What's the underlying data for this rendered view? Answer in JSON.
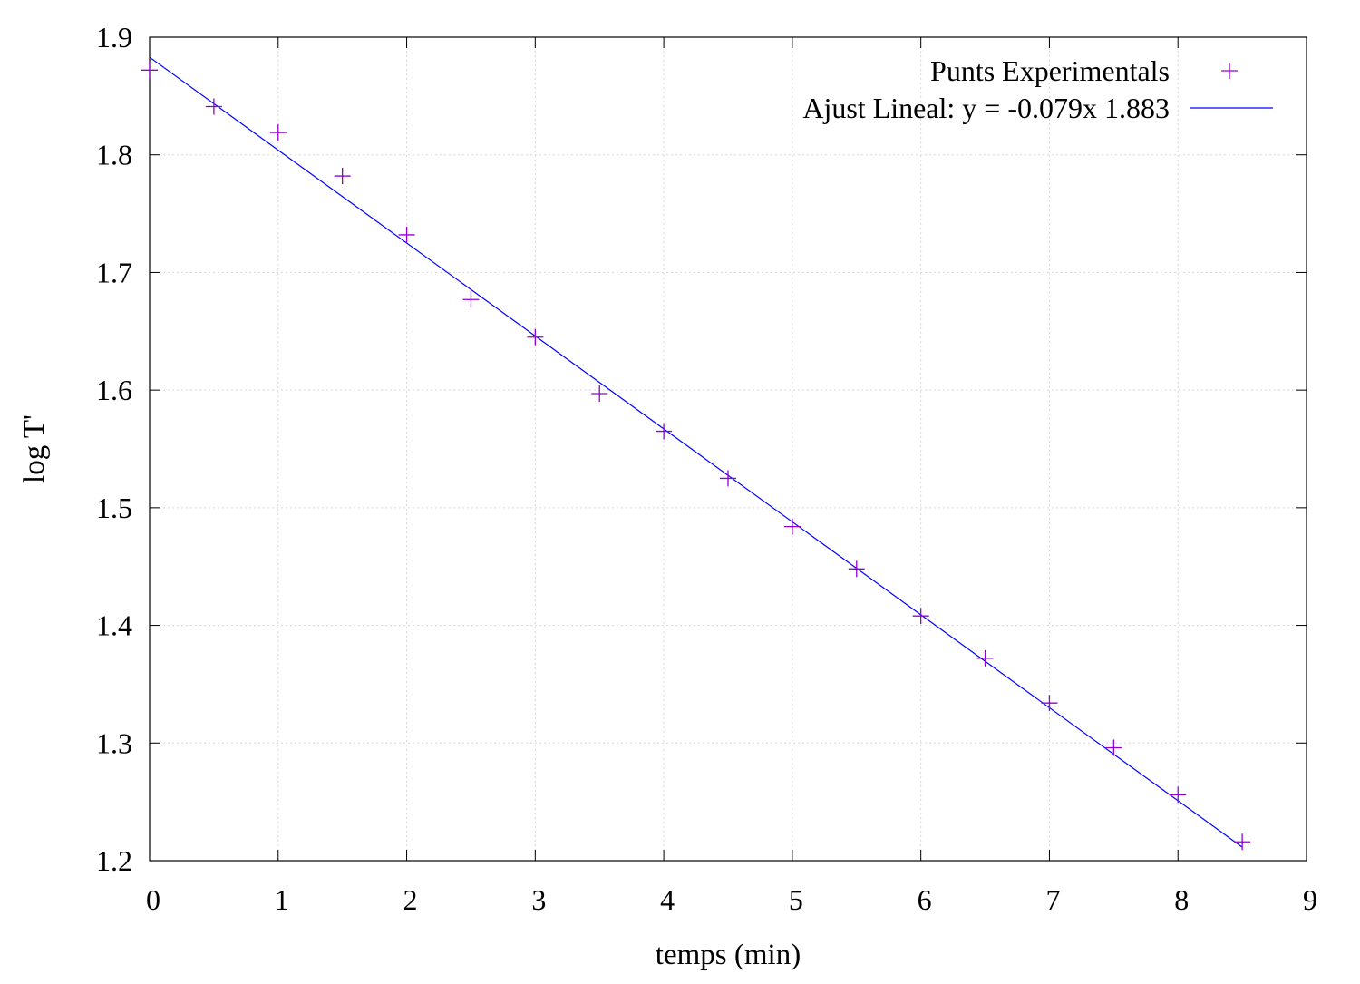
{
  "chart_data": {
    "type": "scatter",
    "title": "",
    "xlabel": "temps (min)",
    "ylabel": "log T'",
    "xlim": [
      0,
      9
    ],
    "ylim": [
      1.2,
      1.9
    ],
    "xticks": [
      "0",
      "1",
      "2",
      "3",
      "4",
      "5",
      "6",
      "7",
      "8",
      "9"
    ],
    "yticks": [
      "1.2",
      "1.3",
      "1.4",
      "1.5",
      "1.6",
      "1.7",
      "1.8",
      "1.9"
    ],
    "grid": true,
    "legend_position": "top-right",
    "series": [
      {
        "name": "Punts Experimentals",
        "kind": "points",
        "marker": "plus",
        "color": "#9400d3",
        "x": [
          0,
          0.5,
          1,
          1.5,
          2,
          2.5,
          3,
          3.5,
          4,
          4.5,
          5,
          5.5,
          6,
          6.5,
          7,
          7.5,
          8,
          8.5
        ],
        "y": [
          1.872,
          1.841,
          1.819,
          1.782,
          1.732,
          1.677,
          1.645,
          1.597,
          1.565,
          1.525,
          1.484,
          1.448,
          1.408,
          1.372,
          1.334,
          1.296,
          1.256,
          1.216
        ]
      },
      {
        "name": "Ajust Lineal: y = -0.079x 1.883",
        "kind": "line",
        "color": "#0000ff",
        "slope": -0.079,
        "intercept": 1.883,
        "x_range": [
          0,
          8.5
        ]
      }
    ]
  }
}
